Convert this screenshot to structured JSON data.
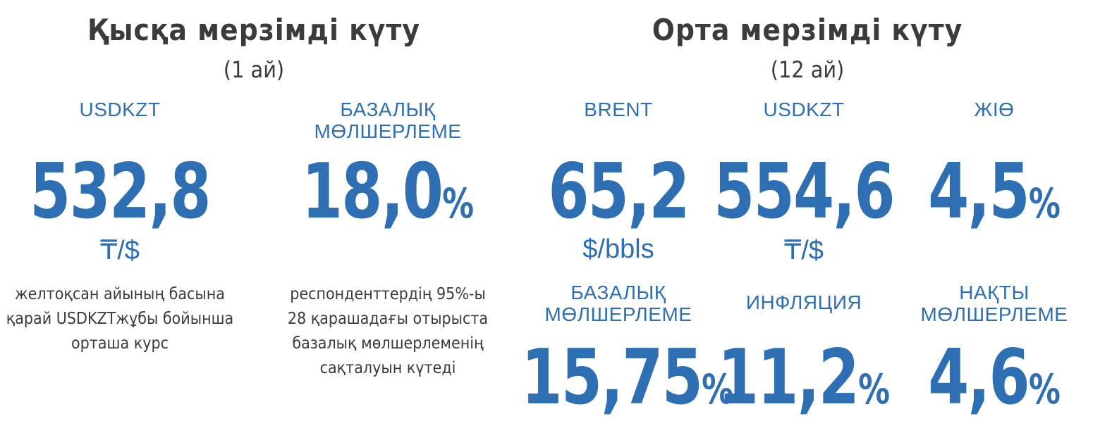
{
  "short_term": {
    "title": "Қысқа мерзімді күту",
    "period": "(1 ай)",
    "usdkzt": {
      "label": "USDKZT",
      "value": "532,8",
      "unit": "₸/$",
      "desc": [
        "желтоқсан айының басына",
        "қарай USDKZTжұбы бойынша",
        "орташа курс"
      ]
    },
    "base_rate": {
      "label_line1": "БАЗАЛЫҚ",
      "label_line2": "МӨЛШЕРЛЕМЕ",
      "value": "18,0",
      "pct": "%",
      "desc": [
        "респонденттердің 95%-ы",
        "28 қарашадағы отырыста",
        "базалық мөлшерлеменің",
        "сақталуын күтеді"
      ]
    }
  },
  "mid_term": {
    "title": "Орта мерзімді күту",
    "period": "(12 ай)",
    "brent": {
      "label": "BRENT",
      "value": "65,2",
      "unit": "$/bbls"
    },
    "usdkzt": {
      "label": "USDKZT",
      "value": "554,6",
      "unit": "₸/$"
    },
    "gdp": {
      "label": "ЖІӨ",
      "value": "4,5",
      "pct": "%"
    },
    "base_rate": {
      "label_line1": "БАЗАЛЫҚ",
      "label_line2": "МӨЛШЕРЛЕМЕ",
      "value": "15,75",
      "pct": "%"
    },
    "inflation": {
      "label": "ИНФЛЯЦИЯ",
      "value": "11,2",
      "pct": "%"
    },
    "real_rate": {
      "label_line1": "НАҚТЫ",
      "label_line2": "МӨЛШЕРЛЕМЕ",
      "value": "4,6",
      "pct": "%"
    }
  },
  "colors": {
    "accent": "#2e6fb4",
    "text": "#3b3b3b"
  }
}
